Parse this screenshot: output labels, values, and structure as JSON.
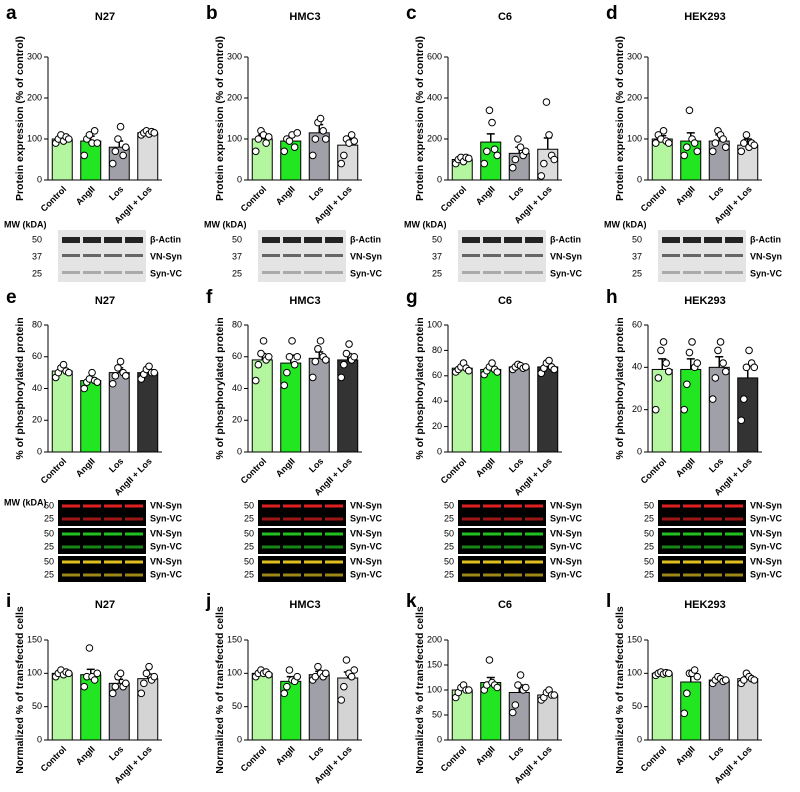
{
  "chart_data": [
    {
      "type": "bar",
      "panel": "a",
      "title": "N27",
      "ylabel": "Protein expression (% of control)",
      "categories": [
        "Control",
        "AngII",
        "Los",
        "AngII + Los"
      ],
      "values": [
        100,
        95,
        80,
        115
      ],
      "errors": [
        8,
        12,
        15,
        5
      ],
      "points": [
        [
          90,
          100,
          110,
          95,
          105,
          100
        ],
        [
          60,
          100,
          110,
          90,
          120,
          90
        ],
        [
          40,
          70,
          100,
          130,
          60,
          80
        ],
        [
          110,
          115,
          120,
          112,
          118,
          115
        ]
      ],
      "colors": [
        "#b4f5a0",
        "#22e622",
        "#a0a0a8",
        "#dcdcdc"
      ],
      "ylim": [
        0,
        300
      ],
      "yticks": [
        0,
        100,
        200,
        300
      ]
    },
    {
      "type": "bar",
      "panel": "b",
      "title": "HMC3",
      "ylabel": "Protein expression (% of control)",
      "categories": [
        "Control",
        "AngII",
        "Los",
        "AngII + Los"
      ],
      "values": [
        100,
        95,
        115,
        85
      ],
      "errors": [
        10,
        10,
        20,
        15
      ],
      "points": [
        [
          70,
          100,
          120,
          110,
          90,
          105
        ],
        [
          70,
          100,
          95,
          110,
          80,
          115
        ],
        [
          60,
          100,
          140,
          150,
          120,
          100
        ],
        [
          40,
          60,
          100,
          90,
          110,
          95
        ]
      ],
      "colors": [
        "#b4f5a0",
        "#22e622",
        "#a0a0a8",
        "#dcdcdc"
      ],
      "ylim": [
        0,
        300
      ],
      "yticks": [
        0,
        100,
        200,
        300
      ]
    },
    {
      "type": "bar",
      "panel": "c",
      "title": "C6",
      "ylabel": "Protein expression (% of control)",
      "categories": [
        "Control",
        "AngII",
        "Los",
        "AngII + Los"
      ],
      "values": [
        100,
        185,
        130,
        150
      ],
      "errors": [
        10,
        40,
        30,
        55
      ],
      "points": [
        [
          80,
          100,
          110,
          90,
          110,
          105
        ],
        [
          80,
          140,
          340,
          280,
          150,
          120
        ],
        [
          60,
          100,
          200,
          160,
          120,
          140
        ],
        [
          20,
          80,
          380,
          220,
          120,
          100
        ]
      ],
      "colors": [
        "#b4f5a0",
        "#22e622",
        "#a0a0a8",
        "#dcdcdc"
      ],
      "ylim": [
        0,
        600
      ],
      "yticks": [
        0,
        200,
        400,
        600
      ]
    },
    {
      "type": "bar",
      "panel": "d",
      "title": "HEK293",
      "ylabel": "Protein expression (% of control)",
      "categories": [
        "Control",
        "AngII",
        "Los",
        "AngII + Los"
      ],
      "values": [
        100,
        95,
        95,
        85
      ],
      "errors": [
        8,
        20,
        15,
        15
      ],
      "points": [
        [
          90,
          110,
          100,
          120,
          95,
          90
        ],
        [
          60,
          80,
          170,
          100,
          90,
          70
        ],
        [
          70,
          90,
          120,
          110,
          100,
          80
        ],
        [
          70,
          90,
          110,
          80,
          90,
          85
        ]
      ],
      "colors": [
        "#b4f5a0",
        "#22e622",
        "#a0a0a8",
        "#dcdcdc"
      ],
      "ylim": [
        0,
        300
      ],
      "yticks": [
        0,
        100,
        200,
        300
      ]
    },
    {
      "type": "bar",
      "panel": "e",
      "title": "N27",
      "ylabel": "% of phosphorylated protein",
      "categories": [
        "Control",
        "AngII",
        "Los",
        "AngII + Los"
      ],
      "values": [
        51,
        45,
        50,
        50
      ],
      "errors": [
        2,
        2,
        3,
        2
      ],
      "points": [
        [
          47,
          50,
          53,
          55,
          51,
          50
        ],
        [
          40,
          44,
          46,
          50,
          45,
          44
        ],
        [
          43,
          48,
          53,
          57,
          50,
          48
        ],
        [
          46,
          49,
          52,
          54,
          50,
          50
        ]
      ],
      "colors": [
        "#b4f5a0",
        "#22e622",
        "#a0a0a8",
        "#333333"
      ],
      "ylim": [
        0,
        80
      ],
      "yticks": [
        0,
        20,
        40,
        60,
        80
      ]
    },
    {
      "type": "bar",
      "panel": "f",
      "title": "HMC3",
      "ylabel": "% of phosphorylated protein",
      "categories": [
        "Control",
        "AngII",
        "Los",
        "AngII + Los"
      ],
      "values": [
        58,
        56,
        59,
        58
      ],
      "errors": [
        4,
        5,
        4,
        4
      ],
      "points": [
        [
          45,
          55,
          62,
          70,
          58,
          60
        ],
        [
          42,
          50,
          60,
          70,
          55,
          60
        ],
        [
          47,
          57,
          65,
          70,
          60,
          58
        ],
        [
          47,
          55,
          62,
          68,
          58,
          60
        ]
      ],
      "colors": [
        "#b4f5a0",
        "#22e622",
        "#a0a0a8",
        "#333333"
      ],
      "ylim": [
        0,
        80
      ],
      "yticks": [
        0,
        20,
        40,
        60,
        80
      ]
    },
    {
      "type": "bar",
      "panel": "g",
      "title": "C6",
      "ylabel": "% of phosphorylated protein",
      "categories": [
        "Control",
        "AngII",
        "Los",
        "AngII + Los"
      ],
      "values": [
        66,
        65,
        67,
        67
      ],
      "errors": [
        2,
        2,
        2,
        2
      ],
      "points": [
        [
          63,
          65,
          67,
          70,
          66,
          64
        ],
        [
          61,
          64,
          67,
          70,
          65,
          63
        ],
        [
          65,
          67,
          69,
          68,
          66,
          67
        ],
        [
          62,
          66,
          70,
          72,
          67,
          65
        ]
      ],
      "colors": [
        "#b4f5a0",
        "#22e622",
        "#a0a0a8",
        "#333333"
      ],
      "ylim": [
        0,
        100
      ],
      "yticks": [
        0,
        20,
        40,
        60,
        80,
        100
      ]
    },
    {
      "type": "bar",
      "panel": "h",
      "title": "HEK293",
      "ylabel": "% of phosphorylated protein",
      "categories": [
        "Control",
        "AngII",
        "Los",
        "AngII + Los"
      ],
      "values": [
        39,
        39,
        40,
        35
      ],
      "errors": [
        5,
        5,
        5,
        6
      ],
      "points": [
        [
          20,
          35,
          48,
          52,
          42,
          38
        ],
        [
          20,
          32,
          47,
          52,
          40,
          42
        ],
        [
          25,
          35,
          48,
          52,
          42,
          38
        ],
        [
          15,
          25,
          40,
          48,
          42,
          40
        ]
      ],
      "colors": [
        "#b4f5a0",
        "#22e622",
        "#a0a0a8",
        "#333333"
      ],
      "ylim": [
        0,
        60
      ],
      "yticks": [
        0,
        20,
        40,
        60
      ]
    },
    {
      "type": "bar",
      "panel": "i",
      "title": "N27",
      "ylabel": "Normalized % of transfected cells",
      "categories": [
        "Control",
        "AngII",
        "Los",
        "AngII + Los"
      ],
      "values": [
        100,
        98,
        85,
        92
      ],
      "errors": [
        4,
        8,
        6,
        7
      ],
      "points": [
        [
          95,
          100,
          105,
          98,
          102,
          100
        ],
        [
          80,
          95,
          138,
          95,
          90,
          100
        ],
        [
          70,
          80,
          95,
          100,
          80,
          85
        ],
        [
          70,
          85,
          100,
          110,
          90,
          95
        ]
      ],
      "colors": [
        "#b4f5a0",
        "#22e622",
        "#a0a0a8",
        "#d4d4d4"
      ],
      "ylim": [
        0,
        150
      ],
      "yticks": [
        0,
        50,
        100,
        150
      ]
    },
    {
      "type": "bar",
      "panel": "j",
      "title": "HMC3",
      "ylabel": "Normalized % of transfected cells",
      "categories": [
        "Control",
        "AngII",
        "Los",
        "AngII + Los"
      ],
      "values": [
        100,
        88,
        98,
        93
      ],
      "errors": [
        3,
        7,
        5,
        9
      ],
      "points": [
        [
          95,
          100,
          105,
          100,
          102,
          98
        ],
        [
          70,
          80,
          105,
          90,
          88,
          95
        ],
        [
          90,
          95,
          110,
          100,
          95,
          100
        ],
        [
          60,
          80,
          120,
          100,
          95,
          105
        ]
      ],
      "colors": [
        "#b4f5a0",
        "#22e622",
        "#a0a0a8",
        "#d4d4d4"
      ],
      "ylim": [
        0,
        150
      ],
      "yticks": [
        0,
        50,
        100,
        150
      ]
    },
    {
      "type": "bar",
      "panel": "k",
      "title": "C6",
      "ylabel": "Normalized % of transfected cells",
      "categories": [
        "Control",
        "AngII",
        "Los",
        "AngII + Los"
      ],
      "values": [
        100,
        115,
        95,
        90
      ],
      "errors": [
        5,
        10,
        15,
        5
      ],
      "points": [
        [
          85,
          95,
          105,
          110,
          100,
          100
        ],
        [
          100,
          110,
          160,
          115,
          110,
          105
        ],
        [
          55,
          70,
          110,
          130,
          100,
          105
        ],
        [
          80,
          85,
          95,
          100,
          90,
          90
        ]
      ],
      "colors": [
        "#b4f5a0",
        "#22e622",
        "#a0a0a8",
        "#d4d4d4"
      ],
      "ylim": [
        0,
        200
      ],
      "yticks": [
        0,
        50,
        100,
        150,
        200
      ]
    },
    {
      "type": "bar",
      "panel": "l",
      "title": "HEK293",
      "ylabel": "Normalized % of transfected cells",
      "categories": [
        "Control",
        "AngII",
        "Los",
        "AngII + Los"
      ],
      "values": [
        100,
        87,
        90,
        92
      ],
      "errors": [
        2,
        12,
        4,
        4
      ],
      "points": [
        [
          97,
          100,
          102,
          99,
          101,
          100
        ],
        [
          40,
          70,
          100,
          100,
          105,
          95
        ],
        [
          85,
          90,
          95,
          92,
          88,
          90
        ],
        [
          85,
          90,
          100,
          95,
          92,
          90
        ]
      ],
      "colors": [
        "#b4f5a0",
        "#22e622",
        "#a0a0a8",
        "#d4d4d4"
      ],
      "ylim": [
        0,
        150
      ],
      "yticks": [
        0,
        50,
        100,
        150
      ]
    }
  ],
  "blots": [
    {
      "mw": "MW (kDA)",
      "markers": [
        "50",
        "37",
        "25"
      ],
      "bands": [
        "β-Actin",
        "VN-Syn",
        "Syn-VC"
      ]
    },
    {
      "mw": "MW (kDA)",
      "markers": [
        "50",
        "37",
        "25"
      ],
      "bands": [
        "β-Actin",
        "VN-Syn",
        "Syn-VC"
      ]
    },
    {
      "mw": "MW (kDA)",
      "markers": [
        "50",
        "37",
        "25"
      ],
      "bands": [
        "β-Actin",
        "VN-Syn",
        "Syn-VC"
      ]
    },
    {
      "mw": "MW (kDA)",
      "markers": [
        "50",
        "37",
        "25"
      ],
      "bands": [
        "β-Actin",
        "VN-Syn",
        "Syn-VC"
      ]
    },
    {
      "mw": "MW (kDA)",
      "markers": [
        "50",
        "25",
        "50",
        "25",
        "50",
        "25"
      ],
      "bands": [
        "VN-Syn",
        "Syn-VC",
        "VN-Syn",
        "Syn-VC",
        "VN-Syn",
        "Syn-VC"
      ]
    },
    {
      "markers": [
        "50",
        "25",
        "50",
        "25",
        "50",
        "25"
      ],
      "bands": [
        "VN-Syn",
        "Syn-VC",
        "VN-Syn",
        "Syn-VC",
        "VN-Syn",
        "Syn-VC"
      ]
    },
    {
      "markers": [
        "50",
        "25",
        "50",
        "25",
        "50",
        "25"
      ],
      "bands": [
        "VN-Syn",
        "Syn-VC",
        "VN-Syn",
        "Syn-VC",
        "VN-Syn",
        "Syn-VC"
      ]
    },
    {
      "markers": [
        "50",
        "25",
        "50",
        "25",
        "50",
        "25"
      ],
      "bands": [
        "VN-Syn",
        "Syn-VC",
        "VN-Syn",
        "Syn-VC",
        "VN-Syn",
        "Syn-VC"
      ]
    }
  ]
}
